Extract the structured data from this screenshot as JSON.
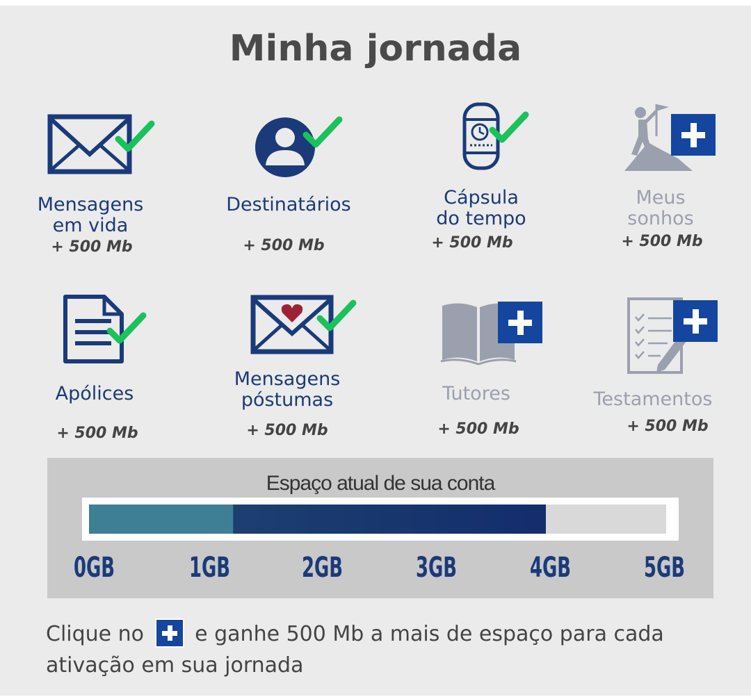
{
  "title": "Minha jornada",
  "colors": {
    "active": "#1a3a7a",
    "inactive": "#9aa0ae",
    "check": "#19c25a",
    "plus": "#1446a0"
  },
  "items": [
    {
      "label": "Mensagens\nem vida",
      "bonus": "+ 500 Mb",
      "status": "checked",
      "icon": "envelope-icon"
    },
    {
      "label": "Destinatários",
      "bonus": "+ 500 Mb",
      "status": "checked",
      "icon": "user-icon"
    },
    {
      "label": "Cápsula\ndo tempo",
      "bonus": "+ 500 Mb",
      "status": "checked",
      "icon": "time-capsule-icon"
    },
    {
      "label": "Meus\nsonhos",
      "bonus": "+ 500 Mb",
      "status": "add",
      "icon": "mountain-flag-icon"
    },
    {
      "label": "Apólices",
      "bonus": "+ 500 Mb",
      "status": "checked",
      "icon": "document-icon"
    },
    {
      "label": "Mensagens\npóstumas",
      "bonus": "+ 500 Mb",
      "status": "checked",
      "icon": "heart-envelope-icon"
    },
    {
      "label": "Tutores",
      "bonus": "+ 500 Mb",
      "status": "add",
      "icon": "book-icon"
    },
    {
      "label": "Testamentos",
      "bonus": "+ 500 Mb",
      "status": "add",
      "icon": "checklist-icon"
    }
  ],
  "storage": {
    "title": "Espaço atual de sua conta",
    "used_gb": 4.0,
    "max_gb": 5,
    "ticks": [
      "0GB",
      "1GB",
      "2GB",
      "3GB",
      "4GB",
      "5GB"
    ]
  },
  "footer": {
    "before": "Clique no",
    "after": "e ganhe 500 Mb a mais de espaço para cada ativação em sua jornada"
  }
}
